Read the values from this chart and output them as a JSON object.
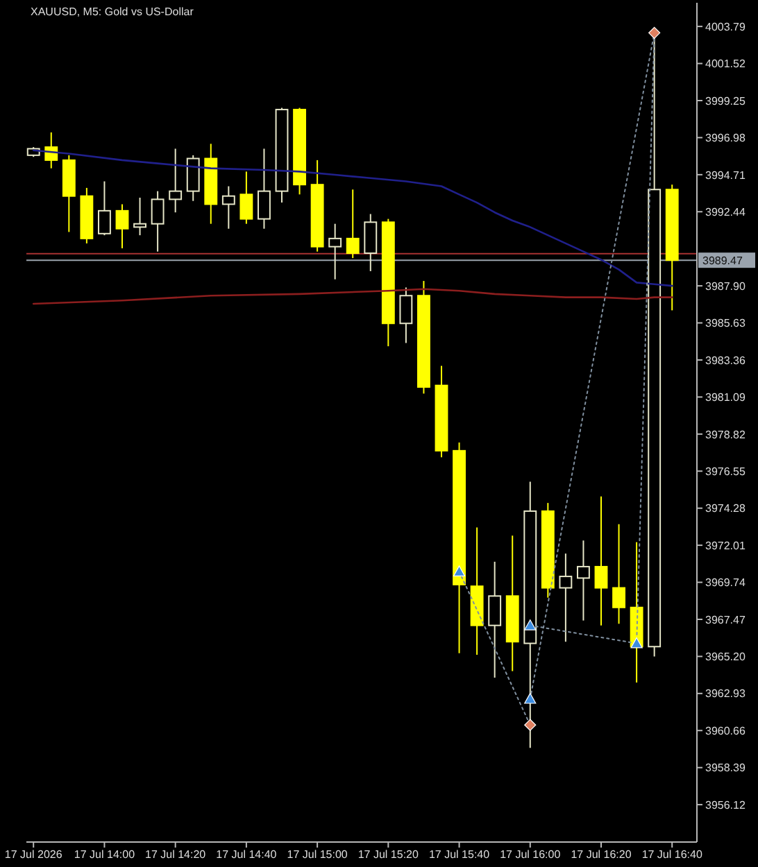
{
  "chart_data": {
    "type": "candlestick",
    "title": "XAUUSD, M5: Gold vs US-Dollar",
    "xlim": [
      "2026-07-17T13:38",
      "2026-07-17T16:47"
    ],
    "xticks": [
      {
        "value": "2026-07-17T13:40",
        "label": "17 Jul 2026"
      },
      {
        "value": "2026-07-17T14:00",
        "label": "17 Jul 14:00"
      },
      {
        "value": "2026-07-17T14:20",
        "label": "17 Jul 14:20"
      },
      {
        "value": "2026-07-17T14:40",
        "label": "17 Jul 14:40"
      },
      {
        "value": "2026-07-17T15:00",
        "label": "17 Jul 15:00"
      },
      {
        "value": "2026-07-17T15:20",
        "label": "17 Jul 15:20"
      },
      {
        "value": "2026-07-17T15:40",
        "label": "17 Jul 15:40"
      },
      {
        "value": "2026-07-17T16:00",
        "label": "17 Jul 16:00"
      },
      {
        "value": "2026-07-17T16:20",
        "label": "17 Jul 16:20"
      },
      {
        "value": "2026-07-17T16:40",
        "label": "17 Jul 16:40"
      }
    ],
    "ylim": [
      3953.83,
      4005.24
    ],
    "yticks": [
      4003.79,
      4001.52,
      3999.25,
      3996.98,
      3994.71,
      3992.44,
      {
        "value": 3987.9,
        "label": "3987.90"
      },
      3985.63,
      3983.36,
      3981.09,
      3978.82,
      3976.55,
      3974.28,
      3972.01,
      3969.74,
      3967.47,
      {
        "value": 3965.2,
        "label": "3965.20"
      },
      3962.93,
      3960.66,
      3958.39,
      3956.12
    ],
    "ref_lines": [
      {
        "axis": "y",
        "value": 3989.87,
        "label": null,
        "color": "#a83232",
        "line_style": "solid"
      },
      {
        "axis": "y",
        "value": 3989.47,
        "label": "3989.47",
        "color": "#9aa3ad",
        "line_style": "solid"
      }
    ],
    "series": [
      {
        "type": "line",
        "color": "#20208c",
        "line_style": "solid",
        "marker": "none",
        "x": [
          "2026-07-17T13:40",
          "2026-07-17T13:50",
          "2026-07-17T14:05",
          "2026-07-17T14:15",
          "2026-07-17T14:30",
          "2026-07-17T14:45",
          "2026-07-17T14:55",
          "2026-07-17T15:05",
          "2026-07-17T15:15",
          "2026-07-17T15:25",
          "2026-07-17T15:35",
          "2026-07-17T15:40",
          "2026-07-17T15:45",
          "2026-07-17T15:50",
          "2026-07-17T15:55",
          "2026-07-17T16:00",
          "2026-07-17T16:05",
          "2026-07-17T16:10",
          "2026-07-17T16:15",
          "2026-07-17T16:20",
          "2026-07-17T16:25",
          "2026-07-17T16:30",
          "2026-07-17T16:35",
          "2026-07-17T16:40"
        ],
        "values": [
          3996.2,
          3996.0,
          3995.6,
          3995.4,
          3995.1,
          3995.0,
          3994.9,
          3994.7,
          3994.5,
          3994.3,
          3994.0,
          3993.5,
          3993.0,
          3992.4,
          3991.9,
          3991.5,
          3991.0,
          3990.5,
          3990.0,
          3989.5,
          3988.9,
          3988.1,
          3988.0,
          3987.9
        ]
      },
      {
        "type": "line",
        "color": "#8c1e1e",
        "line_style": "solid",
        "marker": "none",
        "x": [
          "2026-07-17T13:40",
          "2026-07-17T14:05",
          "2026-07-17T14:30",
          "2026-07-17T14:55",
          "2026-07-17T15:20",
          "2026-07-17T15:30",
          "2026-07-17T15:40",
          "2026-07-17T15:50",
          "2026-07-17T16:00",
          "2026-07-17T16:10",
          "2026-07-17T16:20",
          "2026-07-17T16:30",
          "2026-07-17T16:35",
          "2026-07-17T16:40"
        ],
        "values": [
          3986.8,
          3987.0,
          3987.3,
          3987.4,
          3987.6,
          3987.7,
          3987.6,
          3987.4,
          3987.3,
          3987.2,
          3987.2,
          3987.1,
          3987.2,
          3987.2
        ]
      },
      {
        "type": "line",
        "color": "#8090a0",
        "line_style": "dotted",
        "marker": "none",
        "x": [
          "2026-07-17T15:40",
          "2026-07-17T16:00"
        ],
        "values": [
          3970.4,
          3961.0
        ]
      },
      {
        "type": "line",
        "color": "#8090a0",
        "line_style": "dotted",
        "marker": "none",
        "x": [
          "2026-07-17T16:00",
          "2026-07-17T16:35"
        ],
        "values": [
          3962.6,
          4003.4
        ]
      },
      {
        "type": "line",
        "color": "#8090a0",
        "line_style": "dotted",
        "marker": "none",
        "x": [
          "2026-07-17T16:00",
          "2026-07-17T16:30",
          "2026-07-17T16:35"
        ],
        "values": [
          3967.1,
          3966.0,
          4003.4
        ]
      },
      {
        "x": [
          "2026-07-17T13:40",
          "2026-07-17T13:45",
          "2026-07-17T13:50",
          "2026-07-17T13:55",
          "2026-07-17T14:00",
          "2026-07-17T14:05",
          "2026-07-17T14:10",
          "2026-07-17T14:15",
          "2026-07-17T14:20",
          "2026-07-17T14:25",
          "2026-07-17T14:30",
          "2026-07-17T14:35",
          "2026-07-17T14:40",
          "2026-07-17T14:45",
          "2026-07-17T14:50",
          "2026-07-17T14:55",
          "2026-07-17T15:00",
          "2026-07-17T15:05",
          "2026-07-17T15:10",
          "2026-07-17T15:15",
          "2026-07-17T15:20",
          "2026-07-17T15:25",
          "2026-07-17T15:30",
          "2026-07-17T15:35",
          "2026-07-17T15:40",
          "2026-07-17T15:45",
          "2026-07-17T15:50",
          "2026-07-17T15:55",
          "2026-07-17T16:00",
          "2026-07-17T16:05",
          "2026-07-17T16:10",
          "2026-07-17T16:15",
          "2026-07-17T16:20",
          "2026-07-17T16:25",
          "2026-07-17T16:30",
          "2026-07-17T16:35",
          "2026-07-17T16:40"
        ],
        "ohlc": [
          [
            3995.9,
            3996.4,
            3995.8,
            3996.3
          ],
          [
            3996.4,
            3997.3,
            3995.1,
            3995.6
          ],
          [
            3995.6,
            3995.9,
            3991.2,
            3993.4
          ],
          [
            3993.4,
            3993.9,
            3990.5,
            3990.8
          ],
          [
            3991.1,
            3994.3,
            3991.0,
            3992.5
          ],
          [
            3992.5,
            3992.9,
            3990.2,
            3991.4
          ],
          [
            3991.5,
            3993.3,
            3991.0,
            3991.7
          ],
          [
            3991.7,
            3993.7,
            3990.0,
            3993.2
          ],
          [
            3993.2,
            3996.3,
            3992.4,
            3993.7
          ],
          [
            3993.7,
            3995.9,
            3993.1,
            3995.7
          ],
          [
            3995.7,
            3996.6,
            3991.7,
            3992.9
          ],
          [
            3992.9,
            3994.0,
            3991.4,
            3993.4
          ],
          [
            3993.5,
            3994.9,
            3991.7,
            3992.0
          ],
          [
            3992.0,
            3996.3,
            3991.4,
            3993.7
          ],
          [
            3993.7,
            3998.8,
            3993.0,
            3998.7
          ],
          [
            3998.7,
            3998.8,
            3993.5,
            3994.1
          ],
          [
            3994.1,
            3995.6,
            3990.0,
            3990.3
          ],
          [
            3990.3,
            3991.7,
            3988.3,
            3990.8
          ],
          [
            3990.8,
            3993.8,
            3989.6,
            3989.9
          ],
          [
            3989.9,
            3992.3,
            3988.8,
            3991.8
          ],
          [
            3991.8,
            3992.0,
            3984.2,
            3985.6
          ],
          [
            3985.6,
            3987.8,
            3984.4,
            3987.3
          ],
          [
            3987.3,
            3988.2,
            3981.3,
            3981.7
          ],
          [
            3981.8,
            3983.0,
            3977.4,
            3977.8
          ],
          [
            3977.8,
            3978.3,
            3965.4,
            3969.6
          ],
          [
            3969.5,
            3973.1,
            3965.3,
            3967.1
          ],
          [
            3967.1,
            3971.0,
            3963.9,
            3968.9
          ],
          [
            3968.9,
            3972.6,
            3964.3,
            3966.1
          ],
          [
            3966.0,
            3975.9,
            3959.6,
            3974.1
          ],
          [
            3974.1,
            3974.6,
            3968.8,
            3969.4
          ],
          [
            3969.4,
            3971.5,
            3966.1,
            3970.1
          ],
          [
            3970.0,
            3972.3,
            3967.4,
            3970.7
          ],
          [
            3970.7,
            3975.0,
            3967.1,
            3969.4
          ],
          [
            3969.4,
            3973.3,
            3967.2,
            3968.2
          ],
          [
            3968.2,
            3972.2,
            3963.6,
            3965.8
          ],
          [
            3965.8,
            4003.4,
            3965.2,
            3993.8
          ],
          [
            3993.8,
            3994.1,
            3986.4,
            3989.47
          ]
        ],
        "colors": [
          "#e6e6c8",
          "#ffff00",
          "#ffff00",
          "#ffff00",
          "#e6e6c8",
          "#ffff00",
          "#e6e6c8",
          "#e6e6c8",
          "#e6e6c8",
          "#e6e6c8",
          "#ffff00",
          "#e6e6c8",
          "#ffff00",
          "#e6e6c8",
          "#e6e6c8",
          "#ffff00",
          "#ffff00",
          "#e6e6c8",
          "#ffff00",
          "#e6e6c8",
          "#ffff00",
          "#e6e6c8",
          "#ffff00",
          "#ffff00",
          "#ffff00",
          "#ffff00",
          "#e6e6c8",
          "#ffff00",
          "#e6e6c8",
          "#ffff00",
          "#e6e6c8",
          "#e6e6c8",
          "#ffff00",
          "#ffff00",
          "#ffff00",
          "#e6e6c8",
          "#ffff00"
        ]
      },
      {
        "type": "scatter",
        "color": "#3c8ce0",
        "marker": "triangle",
        "x": [
          "2026-07-17T15:40",
          "2026-07-17T16:00",
          "2026-07-17T16:00",
          "2026-07-17T16:30"
        ],
        "values": [
          3970.4,
          3967.1,
          3962.6,
          3966.0
        ]
      },
      {
        "type": "scatter",
        "color": "#e08060",
        "marker": "diamond",
        "x": [
          "2026-07-17T16:00",
          "2026-07-17T16:35"
        ],
        "values": [
          3961.0,
          4003.4
        ]
      }
    ]
  }
}
